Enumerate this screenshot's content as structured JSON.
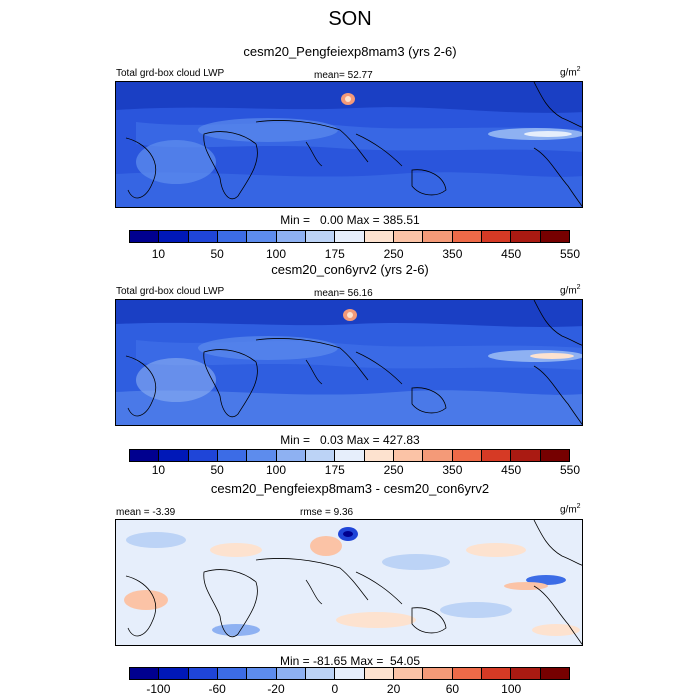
{
  "title": "SON",
  "palettes": {
    "lwp": [
      "#00008f",
      "#0018b8",
      "#1f45d8",
      "#3c6ce6",
      "#5d8ced",
      "#8eb1f2",
      "#bcd3f6",
      "#e6eefb",
      "#fde2cf",
      "#fbc3a6",
      "#f49a78",
      "#ee6a48",
      "#d63a25",
      "#aa1a12",
      "#760000"
    ],
    "diff": [
      "#00008f",
      "#0018b8",
      "#1f45d8",
      "#3c6ce6",
      "#5d8ced",
      "#8eb1f2",
      "#bcd3f6",
      "#e6eefb",
      "#fde2cf",
      "#fbc3a6",
      "#f49a78",
      "#ee6a48",
      "#d63a25",
      "#aa1a12",
      "#760000"
    ]
  },
  "panels": [
    {
      "title": "cesm20_Pengfeiexp8mam3 (yrs 2-6)",
      "left_label": "Total grd-box cloud LWP",
      "center_label": "mean=  52.77",
      "units": "g/m",
      "units_sup": "2",
      "minmax": "Min =   0.00 Max = 385.51",
      "ticks": [
        "10",
        "50",
        "100",
        "175",
        "250",
        "350",
        "450",
        "550"
      ],
      "kind": "lwp"
    },
    {
      "title": "cesm20_con6yrv2 (yrs 2-6)",
      "left_label": "Total grd-box cloud LWP",
      "center_label": "mean=  56.16",
      "units": "g/m",
      "units_sup": "2",
      "minmax": "Min =   0.03 Max = 427.83",
      "ticks": [
        "10",
        "50",
        "100",
        "175",
        "250",
        "350",
        "450",
        "550"
      ],
      "kind": "lwp"
    },
    {
      "title": "cesm20_Pengfeiexp8mam3 - cesm20_con6yrv2",
      "left_label": "mean =  -3.39",
      "center_label": "rmse =   9.36",
      "units": "g/m",
      "units_sup": "2",
      "minmax": "Min = -81.65 Max =  54.05",
      "ticks": [
        "-100",
        "-60",
        "-20",
        "0",
        "20",
        "60",
        "100"
      ],
      "kind": "diff"
    }
  ]
}
